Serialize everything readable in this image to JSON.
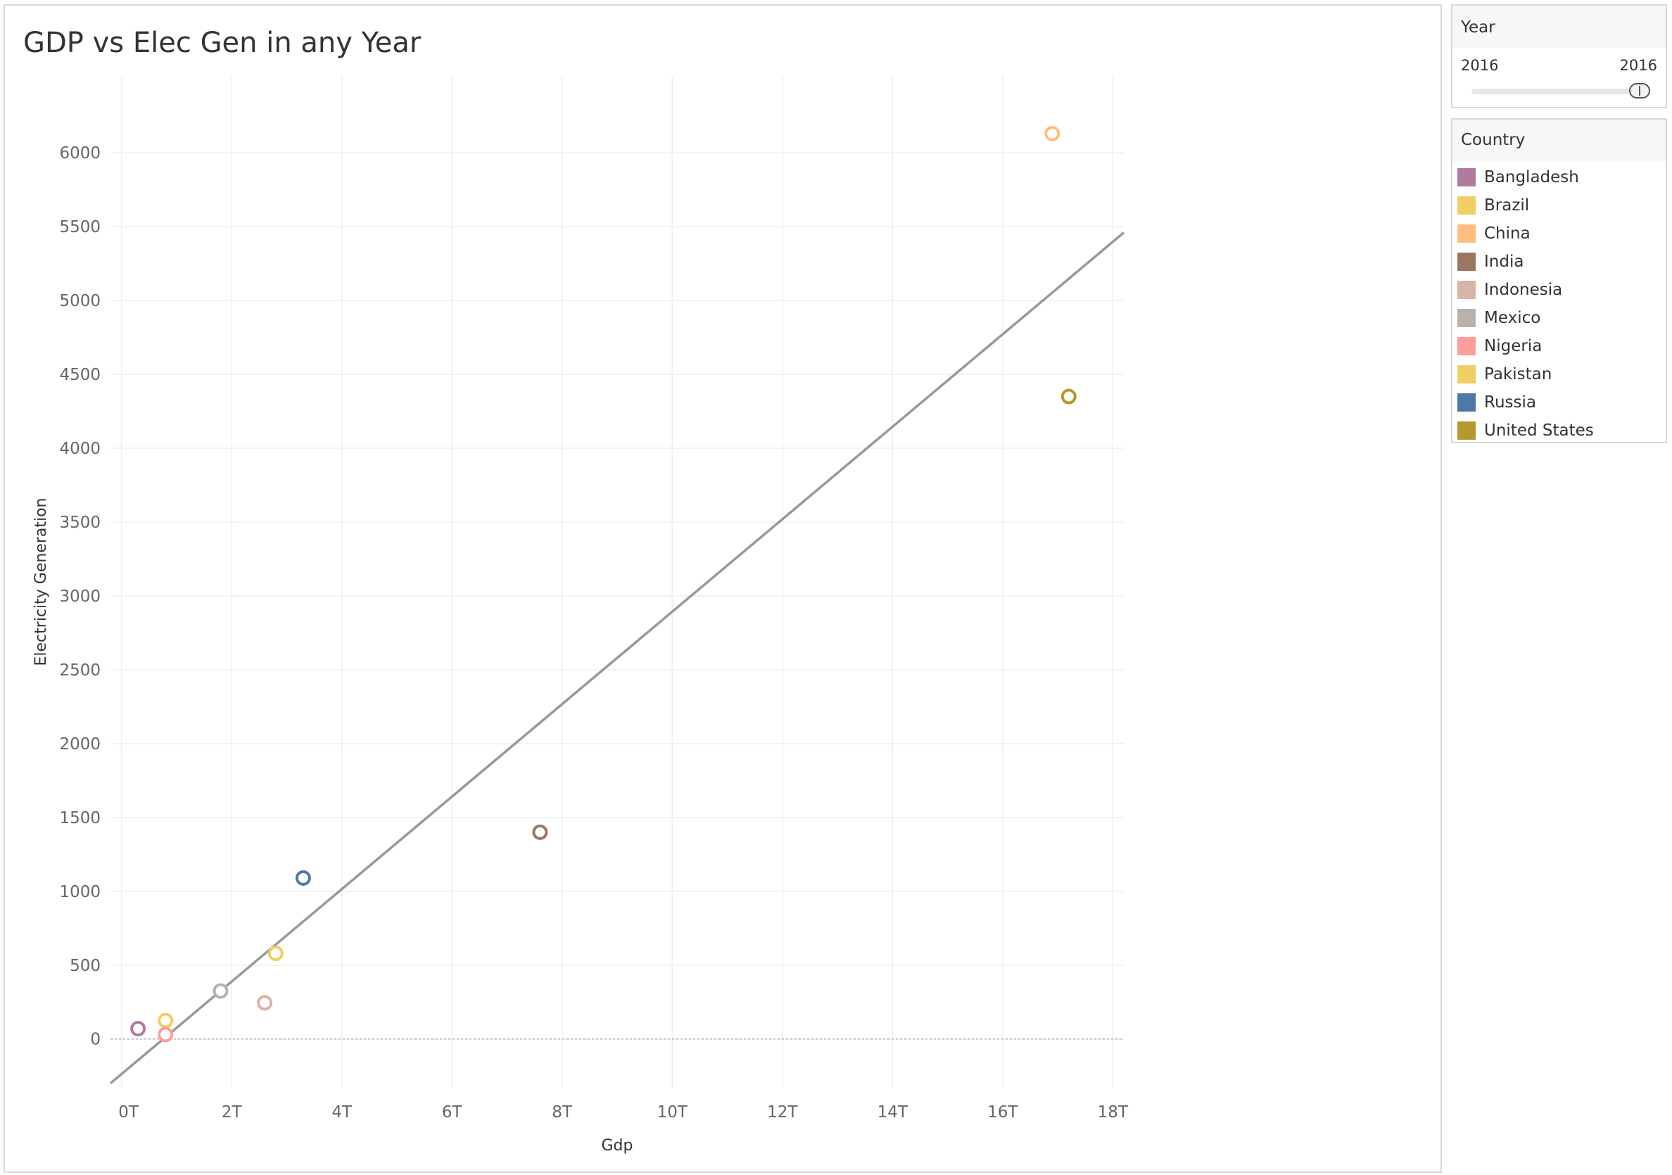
{
  "colors": {
    "trend_line": "#999999",
    "zero_line": "#aaaaaa",
    "grid": "#efefef"
  },
  "filters": {
    "year": {
      "title": "Year",
      "min_label": "2016",
      "max_label": "2016"
    },
    "country": {
      "title": "Country",
      "items": [
        {
          "label": "Bangladesh",
          "color": "#b07aa1"
        },
        {
          "label": "Brazil",
          "color": "#f1ce63"
        },
        {
          "label": "China",
          "color": "#ffbe7d"
        },
        {
          "label": "India",
          "color": "#9d7660"
        },
        {
          "label": "Indonesia",
          "color": "#d7b5a6"
        },
        {
          "label": "Mexico",
          "color": "#bab0ac"
        },
        {
          "label": "Nigeria",
          "color": "#ff9d9a"
        },
        {
          "label": "Pakistan",
          "color": "#f1ce63"
        },
        {
          "label": "Russia",
          "color": "#4e79a7"
        },
        {
          "label": "United States",
          "color": "#b6992d"
        }
      ]
    }
  },
  "chart_data": {
    "type": "scatter",
    "title": "GDP vs Elec Gen in any Year",
    "xlabel": "Gdp",
    "ylabel": "Electricity Generation",
    "xlim": [
      -0.2,
      18.2
    ],
    "ylim": [
      -330,
      6520
    ],
    "x_ticks": [
      0,
      2,
      4,
      6,
      8,
      10,
      12,
      14,
      16,
      18
    ],
    "x_tick_labels": [
      "0T",
      "2T",
      "4T",
      "6T",
      "8T",
      "10T",
      "12T",
      "14T",
      "16T",
      "18T"
    ],
    "y_ticks": [
      0,
      500,
      1000,
      1500,
      2000,
      2500,
      3000,
      3500,
      4000,
      4500,
      5000,
      5500,
      6000
    ],
    "y_tick_labels": [
      "0",
      "500",
      "1000",
      "1500",
      "2000",
      "2500",
      "3000",
      "3500",
      "4000",
      "4500",
      "5000",
      "5500",
      "6000"
    ],
    "grid": true,
    "legend_position": "right",
    "x_unit": "trillions",
    "trend_line": {
      "x": [
        -0.2,
        18.2
      ],
      "y": [
        -300,
        5460
      ]
    },
    "points": [
      {
        "country": "Bangladesh",
        "x": 0.3,
        "y": 70,
        "color": "#b07aa1"
      },
      {
        "country": "Brazil",
        "x": 0.8,
        "y": 125,
        "color": "#f1ce63"
      },
      {
        "country": "China",
        "x": 16.9,
        "y": 6130,
        "color": "#ffbe7d"
      },
      {
        "country": "India",
        "x": 7.6,
        "y": 1400,
        "color": "#9d7660"
      },
      {
        "country": "Indonesia",
        "x": 2.6,
        "y": 245,
        "color": "#d7b5a6"
      },
      {
        "country": "Mexico",
        "x": 1.8,
        "y": 325,
        "color": "#bab0ac"
      },
      {
        "country": "Nigeria",
        "x": 0.8,
        "y": 30,
        "color": "#ff9d9a"
      },
      {
        "country": "Pakistan",
        "x": 2.8,
        "y": 580,
        "color": "#f1ce63"
      },
      {
        "country": "Russia",
        "x": 3.3,
        "y": 1090,
        "color": "#4e79a7"
      },
      {
        "country": "United States",
        "x": 17.2,
        "y": 4350,
        "color": "#b6992d"
      }
    ]
  }
}
